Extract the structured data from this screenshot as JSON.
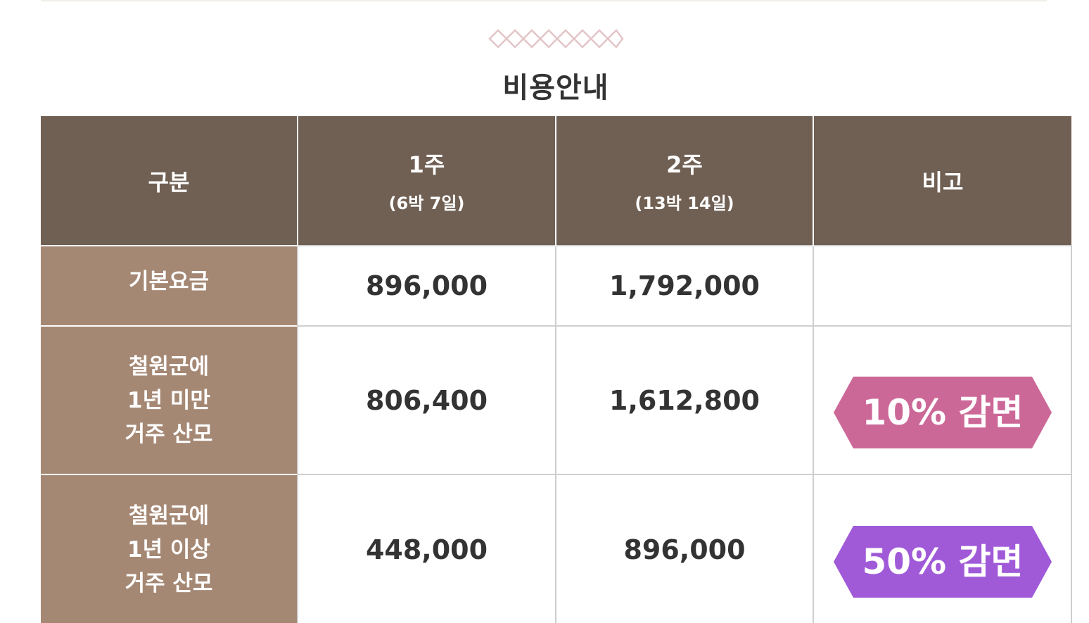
{
  "section": {
    "title": "비용안내"
  },
  "table": {
    "headers": {
      "category": "구분",
      "week1": {
        "main": "1주",
        "sub": "(6박 7일)"
      },
      "week2": {
        "main": "2주",
        "sub": "(13박 14일)"
      },
      "note": "비고"
    },
    "rows": [
      {
        "category_lines": [
          "기본요금"
        ],
        "week1": "896,000",
        "week2": "1,792,000",
        "note": ""
      },
      {
        "category_lines": [
          "철원군에",
          "1년 미만",
          "거주 산모"
        ],
        "week1": "806,400",
        "week2": "1,612,800",
        "note": "10% 감면",
        "note_color": "#cc6898"
      },
      {
        "category_lines": [
          "철원군에",
          "1년 이상",
          "거주 산모"
        ],
        "week1": "448,000",
        "week2": "896,000",
        "note": "50% 감면",
        "note_color": "#a05ad8"
      }
    ]
  },
  "colors": {
    "header_bg": "#705f53",
    "category_bg": "#a58874",
    "ornament": "#e8c8cc"
  }
}
